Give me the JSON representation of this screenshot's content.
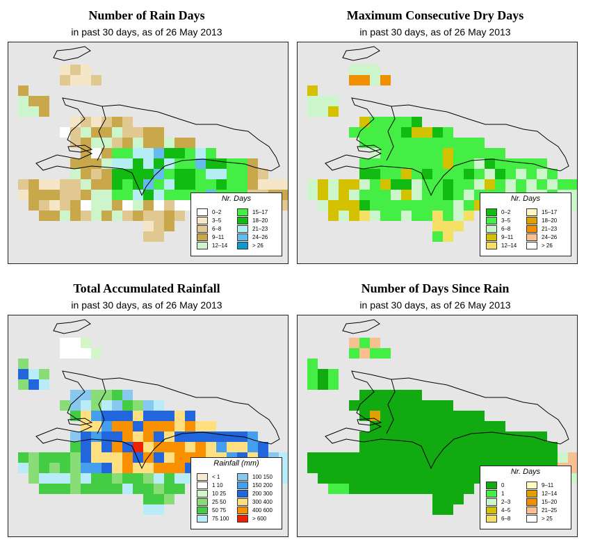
{
  "colors": {
    "ocean": "#e6e6e6",
    "coast": "#000000"
  },
  "panels": [
    {
      "id": "rain-days",
      "title": "Number of Rain Days",
      "subtitle": "in past 30 days, as of  26 May 2013",
      "legend": {
        "title": "Nr. Days",
        "items": [
          {
            "label": "0–2",
            "color": "#ffffff"
          },
          {
            "label": "3–5",
            "color": "#f5e6c8"
          },
          {
            "label": "6–8",
            "color": "#e0c890"
          },
          {
            "label": "9–11",
            "color": "#c8a84a"
          },
          {
            "label": "12–14",
            "color": "#ccf5cc"
          },
          {
            "label": "15–17",
            "color": "#44ee44"
          },
          {
            "label": "18–20",
            "color": "#11bb11"
          },
          {
            "label": "21–23",
            "color": "#b4eef4"
          },
          {
            "label": "24–26",
            "color": "#66bbee"
          },
          {
            "label": "> 26",
            "color": "#1199cc"
          }
        ]
      }
    },
    {
      "id": "max-dry-days",
      "title": "Maximum Consecutive Dry Days",
      "subtitle": "in past 30 days, as of  26 May 2013",
      "legend": {
        "title": "Nr. Days",
        "items": [
          {
            "label": "0–2",
            "color": "#11bb11"
          },
          {
            "label": "3–5",
            "color": "#44ee44"
          },
          {
            "label": "6–8",
            "color": "#ccf5cc"
          },
          {
            "label": "9–11",
            "color": "#d4c200"
          },
          {
            "label": "12–14",
            "color": "#f5e066"
          },
          {
            "label": "15–17",
            "color": "#fff8c0"
          },
          {
            "label": "18–20",
            "color": "#e0a000"
          },
          {
            "label": "21–23",
            "color": "#f09000"
          },
          {
            "label": "24–26",
            "color": "#f8c090"
          },
          {
            "label": "> 26",
            "color": "#ffffff"
          }
        ]
      }
    },
    {
      "id": "total-rainfall",
      "title": "Total Accumulated Rainfall",
      "subtitle": "in past 30 days, as of  26 May 2013",
      "legend": {
        "title": "Rainfall (mm)",
        "items": [
          {
            "label": "< 1",
            "color": "#f8ead0"
          },
          {
            "label": "1   10",
            "color": "#ffffff"
          },
          {
            "label": "10   25",
            "color": "#d4f5c8"
          },
          {
            "label": "25   50",
            "color": "#88dd77"
          },
          {
            "label": "50   75",
            "color": "#44cc44"
          },
          {
            "label": "75   100",
            "color": "#b8ecf8"
          },
          {
            "label": "100   150",
            "color": "#88c8ee"
          },
          {
            "label": "150   200",
            "color": "#44a0ee"
          },
          {
            "label": "200   300",
            "color": "#2266dd"
          },
          {
            "label": "300   400",
            "color": "#ffe080"
          },
          {
            "label": "400   600",
            "color": "#f89000"
          },
          {
            "label": "> 600",
            "color": "#ee2200"
          }
        ]
      }
    },
    {
      "id": "days-since-rain",
      "title": "Number of Days Since Rain",
      "subtitle": "in past 30 days, as of  26 May 2013",
      "legend": {
        "title": "Nr. Days",
        "items": [
          {
            "label": "0",
            "color": "#11aa11"
          },
          {
            "label": "1",
            "color": "#44ee44"
          },
          {
            "label": "2–3",
            "color": "#ccf5cc"
          },
          {
            "label": "4–5",
            "color": "#d4c200"
          },
          {
            "label": "6–8",
            "color": "#f5e066"
          },
          {
            "label": "9–11",
            "color": "#fff8c0"
          },
          {
            "label": "12–14",
            "color": "#e0a000"
          },
          {
            "label": "15–20",
            "color": "#f09000"
          },
          {
            "label": "21–25",
            "color": "#f8c090"
          },
          {
            "label": "> 25",
            "color": "#ffffff"
          }
        ]
      }
    }
  ]
}
